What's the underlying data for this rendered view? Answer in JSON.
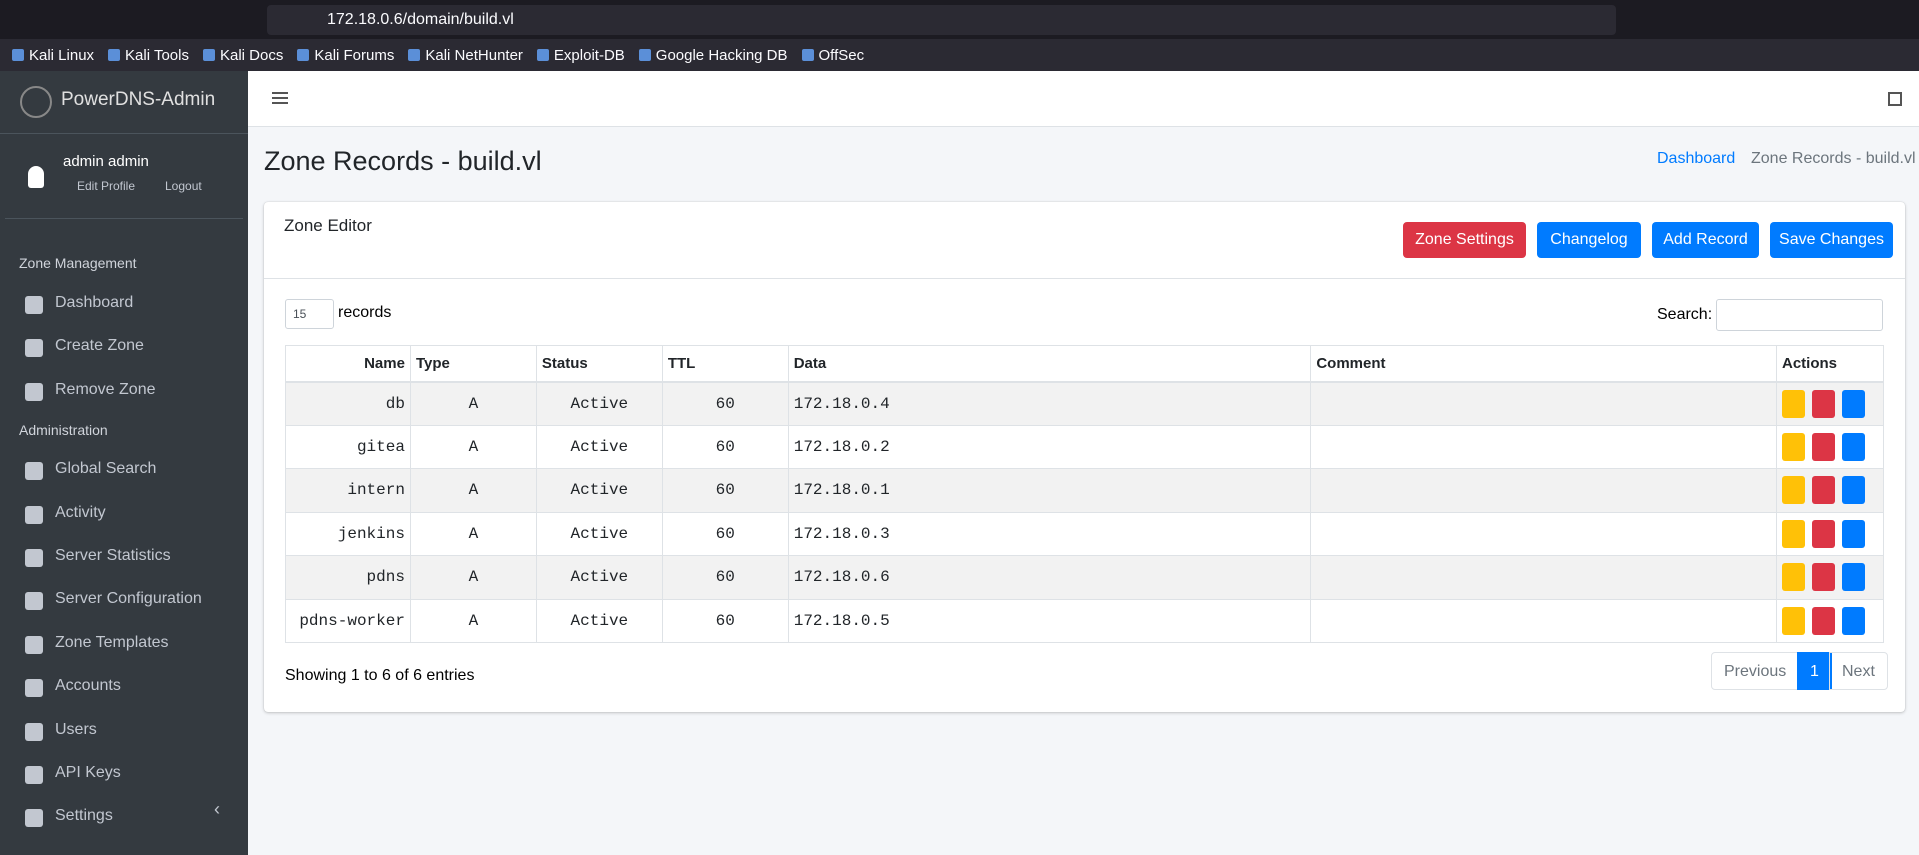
{
  "browser": {
    "url": "172.18.0.6/domain/build.vl",
    "bookmarks": [
      "Kali Linux",
      "Kali Tools",
      "Kali Docs",
      "Kali Forums",
      "Kali NetHunter",
      "Exploit-DB",
      "Google Hacking DB",
      "OffSec"
    ]
  },
  "sidebar": {
    "brand": "PowerDNS-Admin",
    "user": "admin admin",
    "edit_profile": "Edit Profile",
    "logout": "Logout",
    "sections": [
      {
        "title": "Zone Management",
        "items": [
          "Dashboard",
          "Create Zone",
          "Remove Zone"
        ]
      },
      {
        "title": "Administration",
        "items": [
          "Global Search",
          "Activity",
          "Server Statistics",
          "Server Configuration",
          "Zone Templates",
          "Accounts",
          "Users",
          "API Keys",
          "Settings"
        ]
      }
    ]
  },
  "page": {
    "title": "Zone Records - build.vl",
    "breadcrumb": [
      "Dashboard",
      "Zone Records - build.vl"
    ]
  },
  "card": {
    "title": "Zone Editor",
    "buttons": [
      "Zone Settings",
      "Changelog",
      "Add Record",
      "Save Changes"
    ],
    "length": "15",
    "length_label": "records",
    "search_label": "Search:",
    "table": {
      "columns": [
        "Name",
        "Type",
        "Status",
        "TTL",
        "Data",
        "Comment",
        "Actions"
      ],
      "rows": [
        [
          "db",
          "A",
          "Active",
          "60",
          "172.18.0.4"
        ],
        [
          "gitea",
          "A",
          "Active",
          "60",
          "172.18.0.2"
        ],
        [
          "intern",
          "A",
          "Active",
          "60",
          "172.18.0.1"
        ],
        [
          "jenkins",
          "A",
          "Active",
          "60",
          "172.18.0.3"
        ],
        [
          "pdns",
          "A",
          "Active",
          "60",
          "172.18.0.6"
        ],
        [
          "pdns-worker",
          "A",
          "Active",
          "60",
          "172.18.0.5"
        ]
      ]
    },
    "info": "Showing 1 to 6 of 6 entries",
    "pagination": [
      "Previous",
      "1",
      "Next"
    ]
  }
}
